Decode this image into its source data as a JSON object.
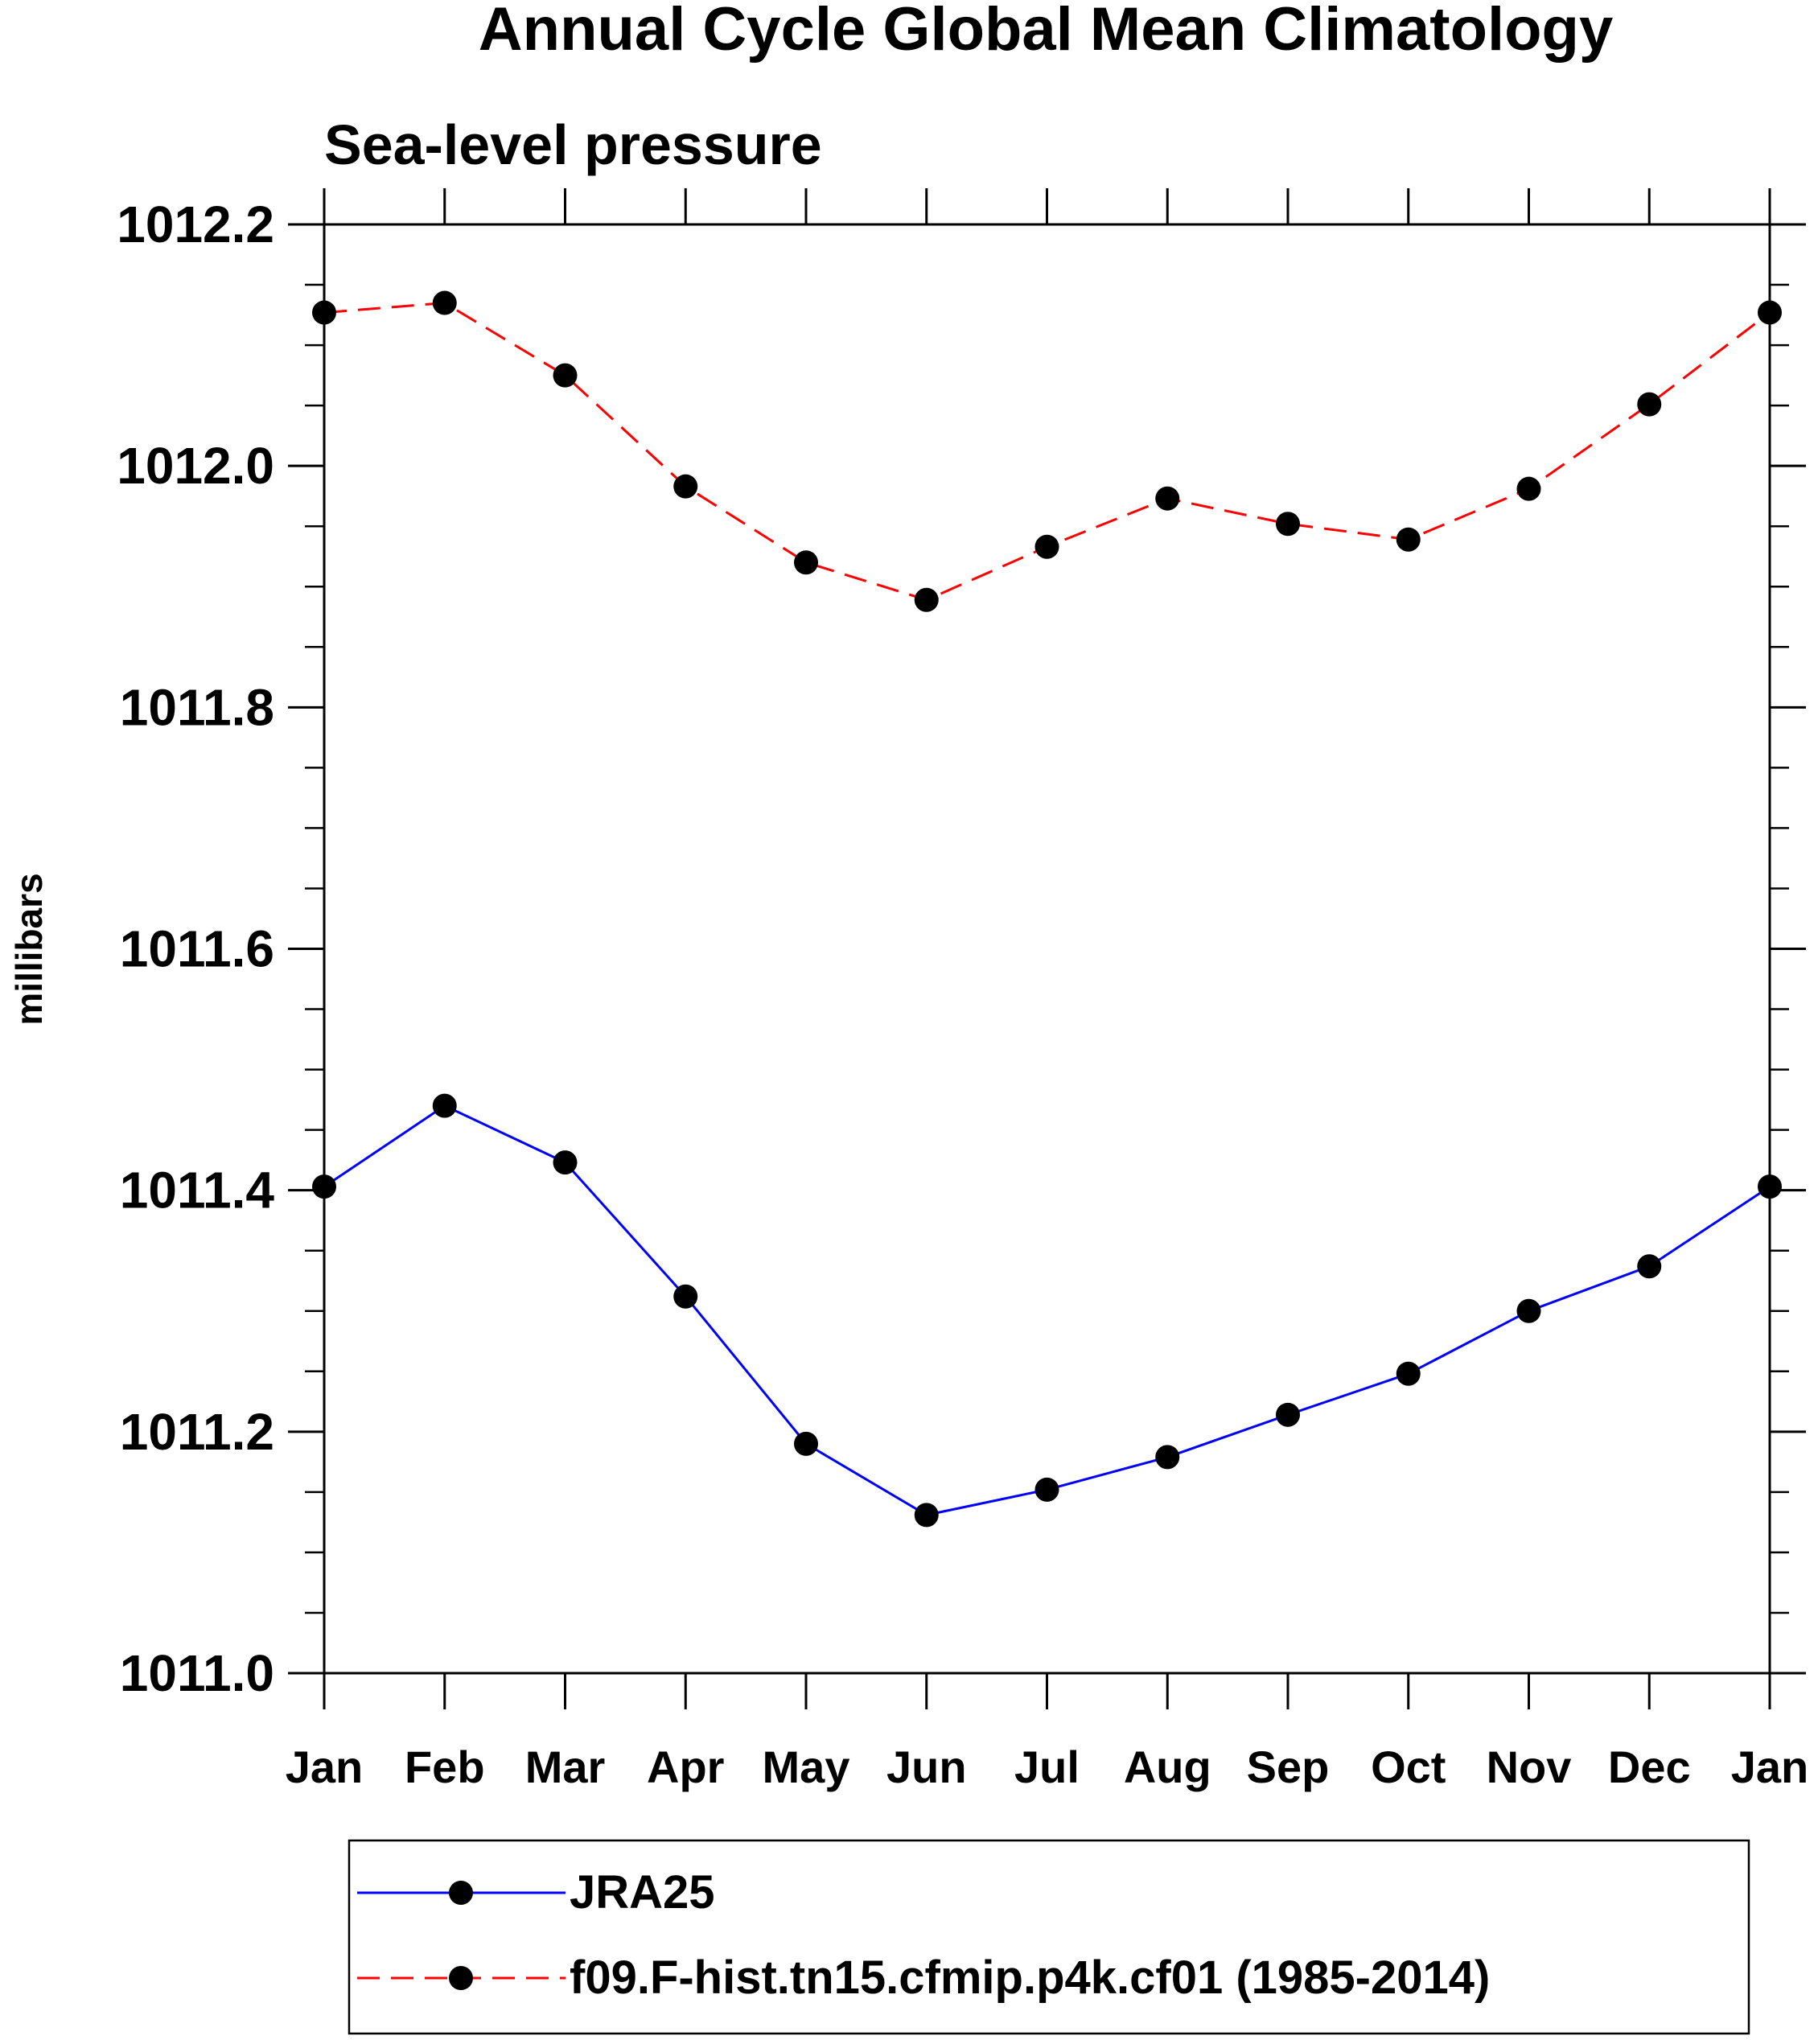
{
  "chart_data": {
    "type": "line",
    "title": "Annual Cycle Global Mean Climatology",
    "subtitle": "Sea-level pressure",
    "xlabel": "",
    "ylabel": "millibars",
    "categories": [
      "Jan",
      "Feb",
      "Mar",
      "Apr",
      "May",
      "Jun",
      "Jul",
      "Aug",
      "Sep",
      "Oct",
      "Nov",
      "Dec",
      "Jan"
    ],
    "ylim": [
      1011.0,
      1012.2
    ],
    "ytick_values": [
      1011.0,
      1011.2,
      1011.4,
      1011.6,
      1011.8,
      1012.0,
      1012.2
    ],
    "ytick_labels": [
      "1011.0",
      "1011.2",
      "1011.4",
      "1011.6",
      "1011.8",
      "1012.0",
      "1012.2"
    ],
    "yminor_step": 0.05,
    "grid": false,
    "legend_position": "bottom-center",
    "series": [
      {
        "name": "JRA25",
        "color": "#0000ff",
        "dash": "solid",
        "marker": "filled-circle",
        "marker_color": "#000000",
        "values": [
          1011.403,
          1011.47,
          1011.423,
          1011.312,
          1011.19,
          1011.131,
          1011.152,
          1011.179,
          1011.214,
          1011.248,
          1011.3,
          1011.337,
          1011.403
        ]
      },
      {
        "name": "f09.F-hist.tn15.cfmip.p4k.cf01 (1985-2014)",
        "color": "#ff0000",
        "dash": "dashed",
        "marker": "filled-circle",
        "marker_color": "#000000",
        "values": [
          1012.127,
          1012.135,
          1012.075,
          1011.983,
          1011.92,
          1011.889,
          1011.933,
          1011.973,
          1011.952,
          1011.939,
          1011.981,
          1012.051,
          1012.127
        ]
      }
    ]
  }
}
